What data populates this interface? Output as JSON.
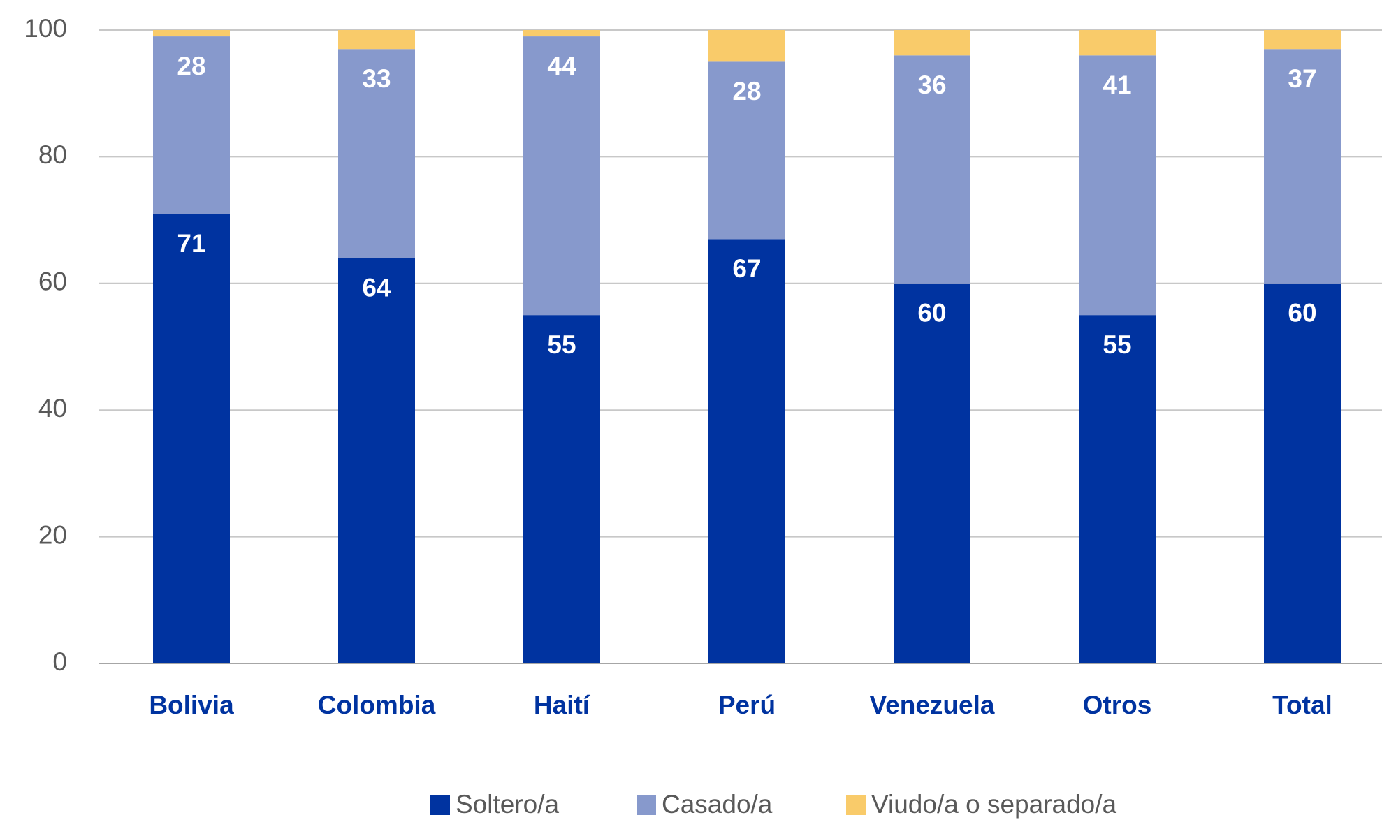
{
  "chart_data": {
    "type": "stacked_bar",
    "categories": [
      "Bolivia",
      "Colombia",
      "Haití",
      "Perú",
      "Venezuela",
      "Otros",
      "Total"
    ],
    "series": [
      {
        "name": "Soltero/a",
        "color": "#0033a0",
        "values": [
          71,
          64,
          55,
          67,
          60,
          55,
          60
        ],
        "labels": true
      },
      {
        "name": "Casado/a",
        "color": "#8799cc",
        "values": [
          28,
          33,
          44,
          28,
          36,
          41,
          37
        ],
        "labels": true
      },
      {
        "name": "Viudo/a o separado/a",
        "color": "#f9cb6a",
        "values": [
          1,
          3,
          1,
          5,
          4,
          4,
          3
        ],
        "labels": false
      }
    ],
    "ylim": [
      0,
      100
    ],
    "yticks": [
      0,
      20,
      40,
      60,
      80,
      100
    ],
    "grid": true,
    "legend": "bottom"
  }
}
